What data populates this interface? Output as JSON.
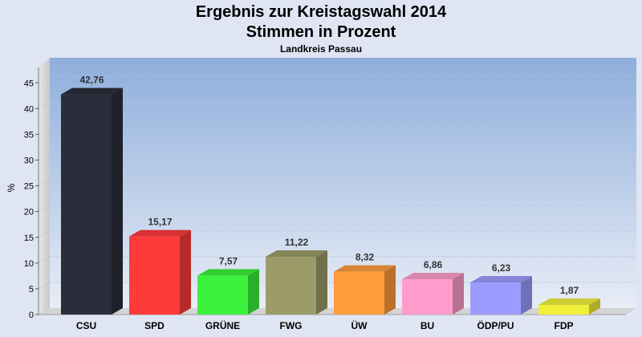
{
  "chart_data": {
    "type": "bar",
    "title": "Ergebnis zur Kreistagswahl 2014",
    "subtitle": "Stimmen in Prozent",
    "caption": "Landkreis Passau",
    "ylabel": "%",
    "ylim": [
      0,
      48
    ],
    "yticks": [
      0,
      5,
      10,
      15,
      20,
      25,
      30,
      35,
      40,
      45
    ],
    "grid": true,
    "categories": [
      "CSU",
      "SPD",
      "GRÜNE",
      "FWG",
      "ÜW",
      "BU",
      "ÖDP/PU",
      "FDP"
    ],
    "values": [
      42.76,
      15.17,
      7.57,
      11.22,
      8.32,
      6.86,
      6.23,
      1.87
    ],
    "value_labels": [
      "42,76",
      "15,17",
      "7,57",
      "11,22",
      "8,32",
      "6,86",
      "6,23",
      "1,87"
    ],
    "colors": [
      "#2a2e3a",
      "#ff3a3a",
      "#3cf23c",
      "#9c9c6a",
      "#ff9c3c",
      "#ff9ccc",
      "#9c9cff",
      "#f0f03c"
    ]
  }
}
